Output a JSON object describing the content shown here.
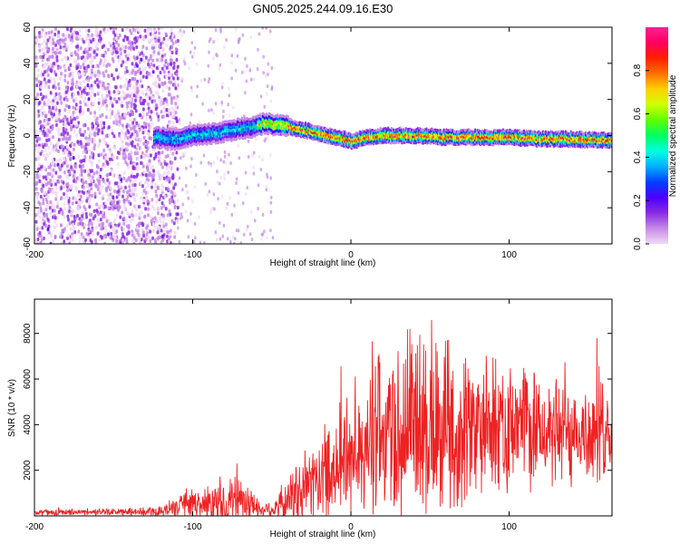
{
  "title": "GN05.2025.244.09.16.E30",
  "chart_data": [
    {
      "type": "heatmap",
      "xlabel": "Height of straight line (km)",
      "ylabel": "Frequency (Hz)",
      "xlim": [
        -200,
        165
      ],
      "ylim": [
        -60,
        60
      ],
      "xticks": [
        -200,
        -100,
        0,
        100
      ],
      "yticks": [
        -60,
        -40,
        -20,
        0,
        20,
        40,
        60
      ],
      "colorbar": {
        "label": "Normalized spectral amplitude",
        "range": [
          0,
          1
        ],
        "ticks": [
          "0.0",
          "0.2",
          "0.4",
          "0.6",
          "0.8"
        ],
        "colors": [
          "#f2d9f7",
          "#c58ae6",
          "#8a2be2",
          "#4b00ff",
          "#0040ff",
          "#00b0ff",
          "#00ffe0",
          "#00ff60",
          "#60ff00",
          "#d0ff00",
          "#ffd000",
          "#ff7000",
          "#ff2000",
          "#ff0060",
          "#ff2090"
        ]
      },
      "noise_band": {
        "x_range": [
          -200,
          -110
        ],
        "description": "broadband noise"
      },
      "signal_track": [
        {
          "x": -125,
          "y": -1
        },
        {
          "x": -110,
          "y": -2
        },
        {
          "x": -100,
          "y": 0
        },
        {
          "x": -90,
          "y": 1
        },
        {
          "x": -80,
          "y": 2
        },
        {
          "x": -70,
          "y": 4
        },
        {
          "x": -60,
          "y": 5
        },
        {
          "x": -55,
          "y": 7
        },
        {
          "x": -50,
          "y": 6
        },
        {
          "x": -45,
          "y": 6
        },
        {
          "x": -40,
          "y": 5
        },
        {
          "x": -30,
          "y": 3
        },
        {
          "x": -20,
          "y": 1
        },
        {
          "x": -10,
          "y": -1
        },
        {
          "x": 0,
          "y": -3
        },
        {
          "x": 10,
          "y": -1
        },
        {
          "x": 20,
          "y": 0
        },
        {
          "x": 40,
          "y": 0
        },
        {
          "x": 60,
          "y": -1
        },
        {
          "x": 80,
          "y": -1
        },
        {
          "x": 100,
          "y": -1
        },
        {
          "x": 120,
          "y": -2
        },
        {
          "x": 140,
          "y": -2
        },
        {
          "x": 165,
          "y": -3
        }
      ]
    },
    {
      "type": "line",
      "xlabel": "Height of straight line (km)",
      "ylabel": "SNR (10 * v/v)",
      "xlim": [
        -200,
        165
      ],
      "ylim": [
        0,
        9500
      ],
      "xticks": [
        -200,
        -100,
        0,
        100
      ],
      "yticks": [
        2000,
        4000,
        6000,
        8000
      ],
      "color": "#ee2222",
      "envelope": [
        {
          "x": -200,
          "base": 150,
          "amp": 150
        },
        {
          "x": -130,
          "base": 180,
          "amp": 200
        },
        {
          "x": -110,
          "base": 300,
          "amp": 500
        },
        {
          "x": -100,
          "base": 500,
          "amp": 900
        },
        {
          "x": -85,
          "base": 500,
          "amp": 1200
        },
        {
          "x": -75,
          "base": 600,
          "amp": 1500
        },
        {
          "x": -65,
          "base": 500,
          "amp": 900
        },
        {
          "x": -55,
          "base": 250,
          "amp": 400
        },
        {
          "x": -45,
          "base": 400,
          "amp": 900
        },
        {
          "x": -30,
          "base": 1200,
          "amp": 1800
        },
        {
          "x": -15,
          "base": 2000,
          "amp": 2500
        },
        {
          "x": 0,
          "base": 2800,
          "amp": 3500
        },
        {
          "x": 20,
          "base": 3500,
          "amp": 4500
        },
        {
          "x": 40,
          "base": 4000,
          "amp": 5200
        },
        {
          "x": 55,
          "base": 4000,
          "amp": 5000
        },
        {
          "x": 80,
          "base": 3800,
          "amp": 3800
        },
        {
          "x": 110,
          "base": 3800,
          "amp": 3000
        },
        {
          "x": 140,
          "base": 3600,
          "amp": 2800
        },
        {
          "x": 165,
          "base": 3600,
          "amp": 2800
        }
      ]
    }
  ]
}
